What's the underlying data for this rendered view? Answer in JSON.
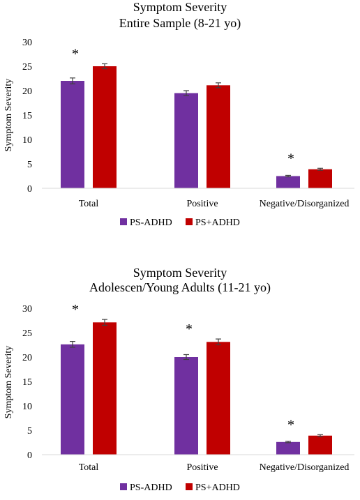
{
  "chart_data": [
    {
      "type": "bar",
      "title": "Symptom Severity",
      "subtitle": "Entire Sample (8-21 yo)",
      "xlabel": "",
      "ylabel": "Symptom Severity",
      "ylim": [
        0,
        30
      ],
      "yticks": [
        "0",
        "5",
        "10",
        "15",
        "20",
        "25",
        "30"
      ],
      "categories": [
        "Total",
        "Positive",
        "Negative/Disorganized"
      ],
      "series": [
        {
          "name": "PS-ADHD",
          "color": "#7030A0",
          "values": [
            22.0,
            19.5,
            2.5
          ],
          "errors": [
            0.6,
            0.5,
            0.15
          ]
        },
        {
          "name": "PS+ADHD",
          "color": "#C00000",
          "values": [
            25.0,
            21.1,
            3.9
          ],
          "errors": [
            0.5,
            0.5,
            0.2
          ]
        }
      ],
      "significance": [
        {
          "category": "Total",
          "label": "*"
        },
        {
          "category": "Negative/Disorganized",
          "label": "*"
        }
      ],
      "grid": false,
      "legend_position": "bottom"
    },
    {
      "type": "bar",
      "title": "Symptom Severity",
      "subtitle": "Adolescen/Young Adults (11-21 yo)",
      "xlabel": "",
      "ylabel": "Symptom Severity",
      "ylim": [
        0,
        30
      ],
      "yticks": [
        "0",
        "5",
        "10",
        "15",
        "20",
        "25",
        "30"
      ],
      "categories": [
        "Total",
        "Positive",
        "Negative/Disorganized"
      ],
      "series": [
        {
          "name": "PS-ADHD",
          "color": "#7030A0",
          "values": [
            22.6,
            20.0,
            2.6
          ],
          "errors": [
            0.6,
            0.5,
            0.15
          ]
        },
        {
          "name": "PS+ADHD",
          "color": "#C00000",
          "values": [
            27.1,
            23.1,
            3.9
          ],
          "errors": [
            0.6,
            0.6,
            0.2
          ]
        }
      ],
      "significance": [
        {
          "category": "Total",
          "label": "*"
        },
        {
          "category": "Positive",
          "label": "*"
        },
        {
          "category": "Negative/Disorganized",
          "label": "*"
        }
      ],
      "grid": false,
      "legend_position": "bottom"
    }
  ]
}
